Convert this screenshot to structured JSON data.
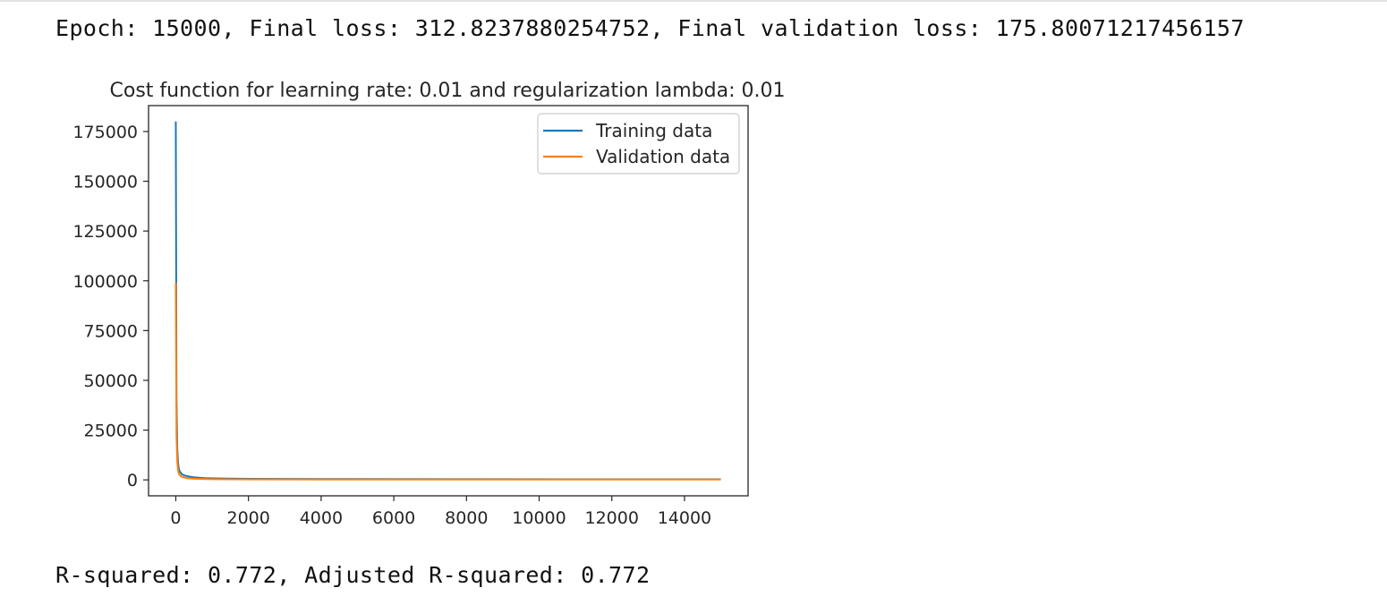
{
  "output": {
    "epoch_line": "Epoch: 15000, Final loss: 312.8237880254752, Final validation loss: 175.80071217456157",
    "rsquared_line": "R-squared: 0.772, Adjusted R-squared: 0.772"
  },
  "chart_data": {
    "type": "line",
    "title": "Cost function for learning rate: 0.01 and regularization lambda: 0.01",
    "xlabel": "",
    "ylabel": "",
    "xlim": [
      -750,
      15750
    ],
    "ylim": [
      -8000,
      188000
    ],
    "x_ticks": [
      0,
      2000,
      4000,
      6000,
      8000,
      10000,
      12000,
      14000
    ],
    "y_ticks": [
      0,
      25000,
      50000,
      75000,
      100000,
      125000,
      150000,
      175000
    ],
    "grid": false,
    "legend_position": "upper right",
    "series": [
      {
        "name": "Training data",
        "color": "#1f77b4",
        "x": [
          0,
          20,
          40,
          60,
          80,
          100,
          150,
          200,
          300,
          500,
          800,
          1200,
          2000,
          4000,
          8000,
          12000,
          15000
        ],
        "y": [
          180000,
          40000,
          16000,
          9000,
          6000,
          4500,
          3200,
          2500,
          1900,
          1300,
          900,
          700,
          520,
          420,
          360,
          330,
          313
        ]
      },
      {
        "name": "Validation data",
        "color": "#ff7f0e",
        "x": [
          0,
          20,
          40,
          60,
          80,
          100,
          150,
          200,
          300,
          500,
          800,
          1200,
          2000,
          4000,
          8000,
          12000,
          15000
        ],
        "y": [
          99000,
          22000,
          9500,
          5200,
          3500,
          2600,
          1800,
          1300,
          900,
          600,
          420,
          330,
          260,
          210,
          190,
          180,
          176
        ]
      }
    ]
  }
}
